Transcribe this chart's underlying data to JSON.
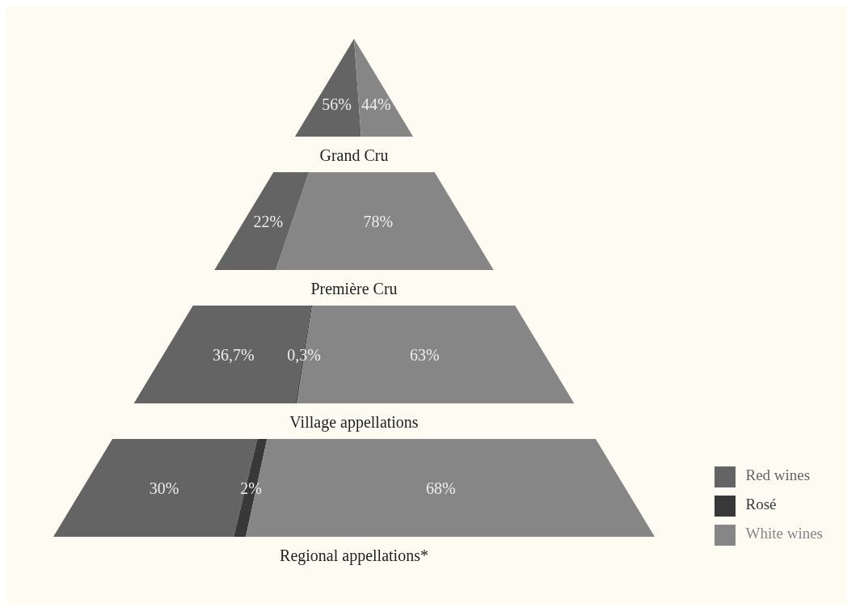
{
  "chart_data": {
    "type": "other",
    "categories": [
      "Grand Cru",
      "Première Cru",
      "Village appellations",
      "Regional appellations*"
    ],
    "series": [
      {
        "name": "Red wines",
        "color": "#646464",
        "values": [
          56,
          22,
          36.7,
          30
        ],
        "value_labels": [
          "56%",
          "22%",
          "36,7%",
          "30%"
        ]
      },
      {
        "name": "Rosé",
        "color": "#383838",
        "values": [
          null,
          null,
          0.3,
          2
        ],
        "value_labels": [
          null,
          null,
          "0,3%",
          "2%"
        ]
      },
      {
        "name": "White wines",
        "color": "#868686",
        "values": [
          44,
          78,
          63,
          68
        ],
        "value_labels": [
          "44%",
          "78%",
          "63%",
          "68%"
        ]
      }
    ],
    "legend": "bottom right"
  }
}
